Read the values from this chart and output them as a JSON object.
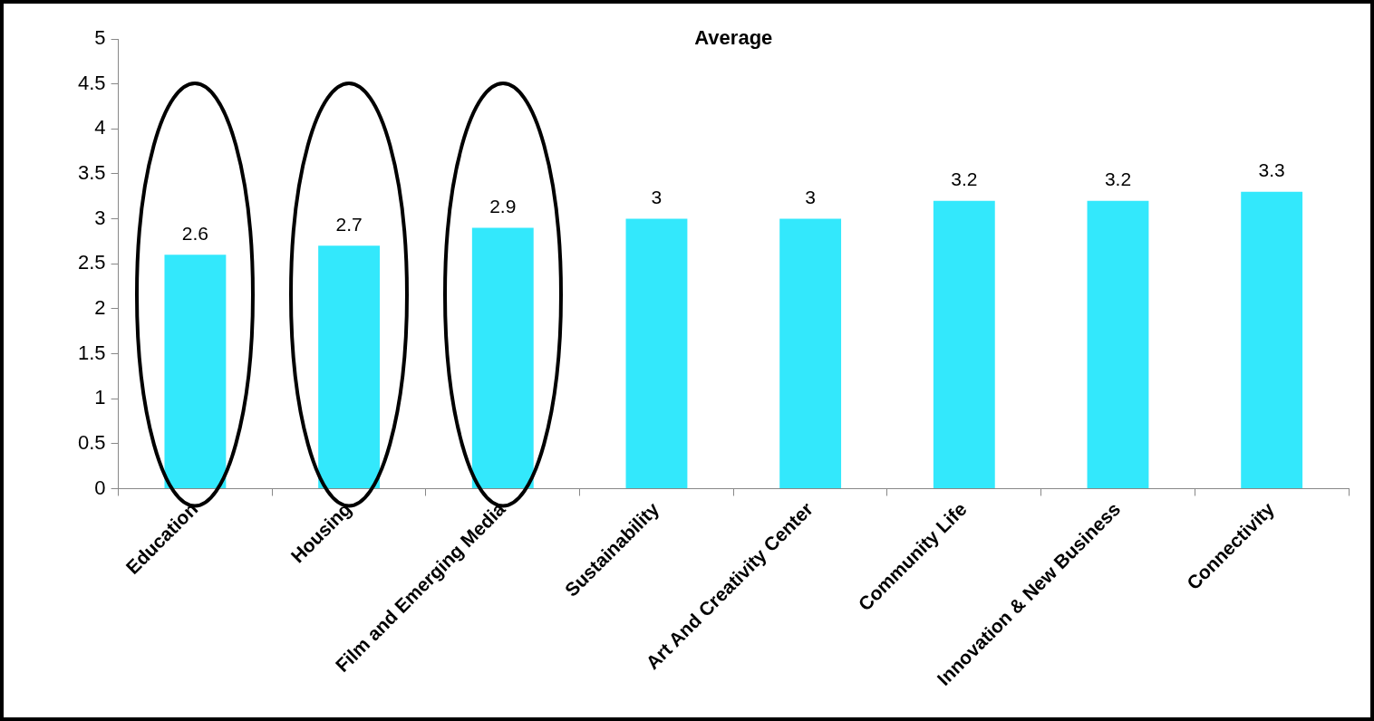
{
  "chart_data": {
    "type": "bar",
    "title": "Average",
    "categories": [
      "Education",
      "Housing",
      "Film and Emerging Media",
      "Sustainability",
      "Art And Creativity Center",
      "Community Life",
      "Innovation & New Business",
      "Connectivity"
    ],
    "values": [
      2.6,
      2.7,
      2.9,
      3,
      3,
      3.2,
      3.2,
      3.3
    ],
    "color": "#33e8fc",
    "ylim": [
      0,
      5
    ],
    "yticks": [
      0,
      0.5,
      1,
      1.5,
      2,
      2.5,
      3,
      3.5,
      4,
      4.5,
      5
    ],
    "grid": false,
    "legend": false,
    "data_labels": true
  }
}
